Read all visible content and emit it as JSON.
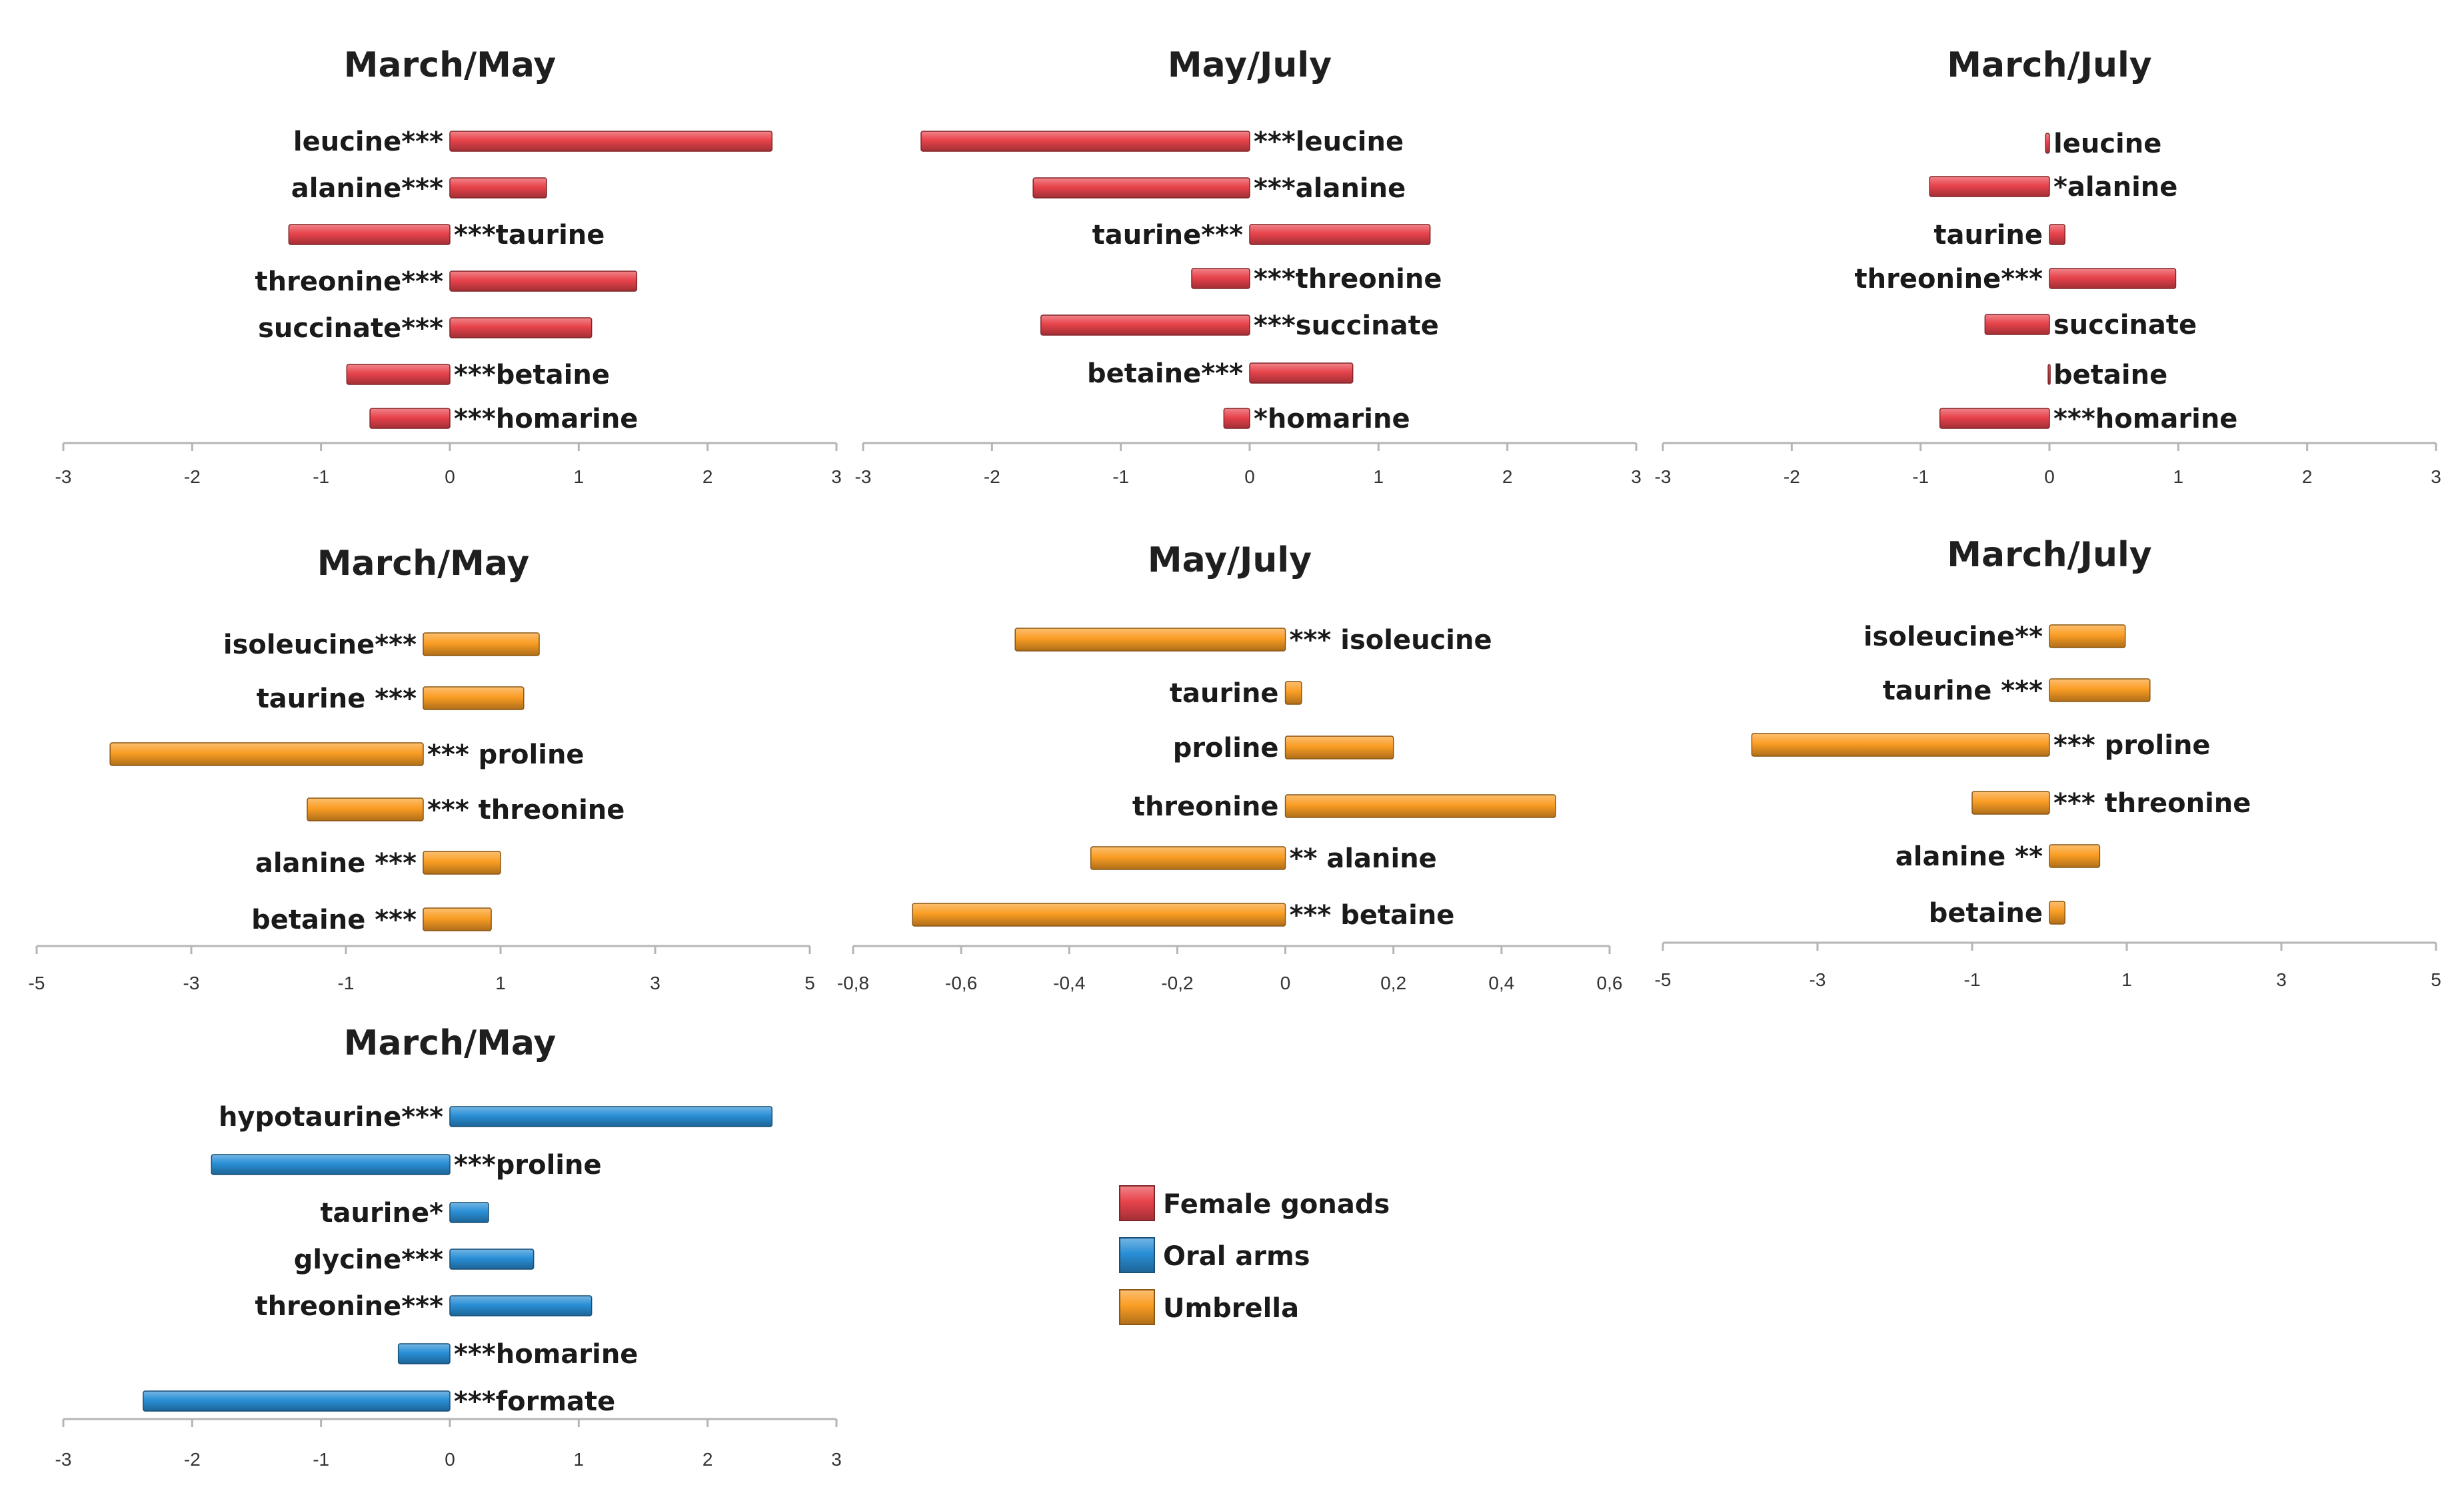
{
  "colors": {
    "Female gonads": "#e8434b",
    "Oral arms": "#2a8fd6",
    "Umbrella": "#fa9d24"
  },
  "legend": [
    "Female gonads",
    "Oral arms",
    "Umbrella"
  ],
  "chart_data": [
    {
      "type": "bar",
      "orientation": "horizontal",
      "title": "March/May",
      "series": "Female gonads",
      "xlim": [
        -3,
        3
      ],
      "xticks": [
        "-3",
        "-2",
        "-1",
        "0",
        "1",
        "2",
        "3"
      ],
      "bars": [
        {
          "label": "leucine***",
          "value": 2.5
        },
        {
          "label": "alanine***",
          "value": 0.75
        },
        {
          "label": "***taurine",
          "value": -1.25
        },
        {
          "label": "threonine***",
          "value": 1.45
        },
        {
          "label": "succinate***",
          "value": 1.1
        },
        {
          "label": "***betaine",
          "value": -0.8
        },
        {
          "label": "***homarine",
          "value": -0.62
        }
      ]
    },
    {
      "type": "bar",
      "orientation": "horizontal",
      "title": "May/July",
      "series": "Female gonads",
      "xlim": [
        -3,
        3
      ],
      "xticks": [
        "-3",
        "-2",
        "-1",
        "0",
        "1",
        "2",
        "3"
      ],
      "bars": [
        {
          "label": "***leucine",
          "value": -2.55
        },
        {
          "label": "***alanine",
          "value": -1.68
        },
        {
          "label": "taurine***",
          "value": 1.4
        },
        {
          "label": "***threonine",
          "value": -0.45
        },
        {
          "label": "***succinate",
          "value": -1.62
        },
        {
          "label": "betaine***",
          "value": 0.8
        },
        {
          "label": "*homarine",
          "value": -0.2
        }
      ]
    },
    {
      "type": "bar",
      "orientation": "horizontal",
      "title": "March/July",
      "series": "Female gonads",
      "xlim": [
        -3,
        3
      ],
      "xticks": [
        "-3",
        "-2",
        "-1",
        "0",
        "1",
        "2",
        "3"
      ],
      "bars": [
        {
          "label": "leucine",
          "value": -0.03
        },
        {
          "label": "*alanine",
          "value": -0.93
        },
        {
          "label": "taurine",
          "value": 0.12
        },
        {
          "label": "threonine***",
          "value": 0.98
        },
        {
          "label": "succinate",
          "value": -0.5
        },
        {
          "label": "betaine",
          "value": -0.01
        },
        {
          "label": "***homarine",
          "value": -0.85
        }
      ]
    },
    {
      "type": "bar",
      "orientation": "horizontal",
      "title": "March/May",
      "series": "Umbrella",
      "xlim": [
        -5,
        5
      ],
      "xticks": [
        "-5",
        "-3",
        "-1",
        "1",
        "3",
        "5"
      ],
      "bars": [
        {
          "label": "isoleucine***",
          "value": 1.5
        },
        {
          "label": "taurine ***",
          "value": 1.3
        },
        {
          "label": "*** proline",
          "value": -4.05
        },
        {
          "label": "*** threonine",
          "value": -1.5
        },
        {
          "label": "alanine ***",
          "value": 1.0
        },
        {
          "label": "betaine ***",
          "value": 0.88
        }
      ]
    },
    {
      "type": "bar",
      "orientation": "horizontal",
      "title": "May/July",
      "series": "Umbrella",
      "xlim": [
        -0.8,
        0.6
      ],
      "xticks": [
        "-0,8",
        "-0,6",
        "-0,4",
        "-0,2",
        "0",
        "0,2",
        "0,4",
        "0,6"
      ],
      "bars": [
        {
          "label": "*** isoleucine",
          "value": -0.5
        },
        {
          "label": "taurine",
          "value": 0.03
        },
        {
          "label": "proline",
          "value": 0.2
        },
        {
          "label": "threonine",
          "value": 0.5
        },
        {
          "label": "** alanine",
          "value": -0.36
        },
        {
          "label": "*** betaine",
          "value": -0.69
        }
      ]
    },
    {
      "type": "bar",
      "orientation": "horizontal",
      "title": "March/July",
      "series": "Umbrella",
      "xlim": [
        -5,
        5
      ],
      "xticks": [
        "-5",
        "-3",
        "-1",
        "1",
        "3",
        "5"
      ],
      "bars": [
        {
          "label": "isoleucine**",
          "value": 0.98
        },
        {
          "label": "taurine ***",
          "value": 1.3
        },
        {
          "label": "*** proline",
          "value": -3.85
        },
        {
          "label": "*** threonine",
          "value": -1.0
        },
        {
          "label": "alanine **",
          "value": 0.65
        },
        {
          "label": "betaine",
          "value": 0.2
        }
      ]
    },
    {
      "type": "bar",
      "orientation": "horizontal",
      "title": "March/May",
      "series": "Oral arms",
      "xlim": [
        -3,
        3
      ],
      "xticks": [
        "-3",
        "-2",
        "-1",
        "0",
        "1",
        "2",
        "3"
      ],
      "bars": [
        {
          "label": "hypotaurine***",
          "value": 2.5
        },
        {
          "label": "***proline",
          "value": -1.85
        },
        {
          "label": "taurine*",
          "value": 0.3
        },
        {
          "label": "glycine***",
          "value": 0.65
        },
        {
          "label": "threonine***",
          "value": 1.1
        },
        {
          "label": "***homarine",
          "value": -0.4
        },
        {
          "label": "***formate",
          "value": -2.38
        }
      ]
    }
  ]
}
